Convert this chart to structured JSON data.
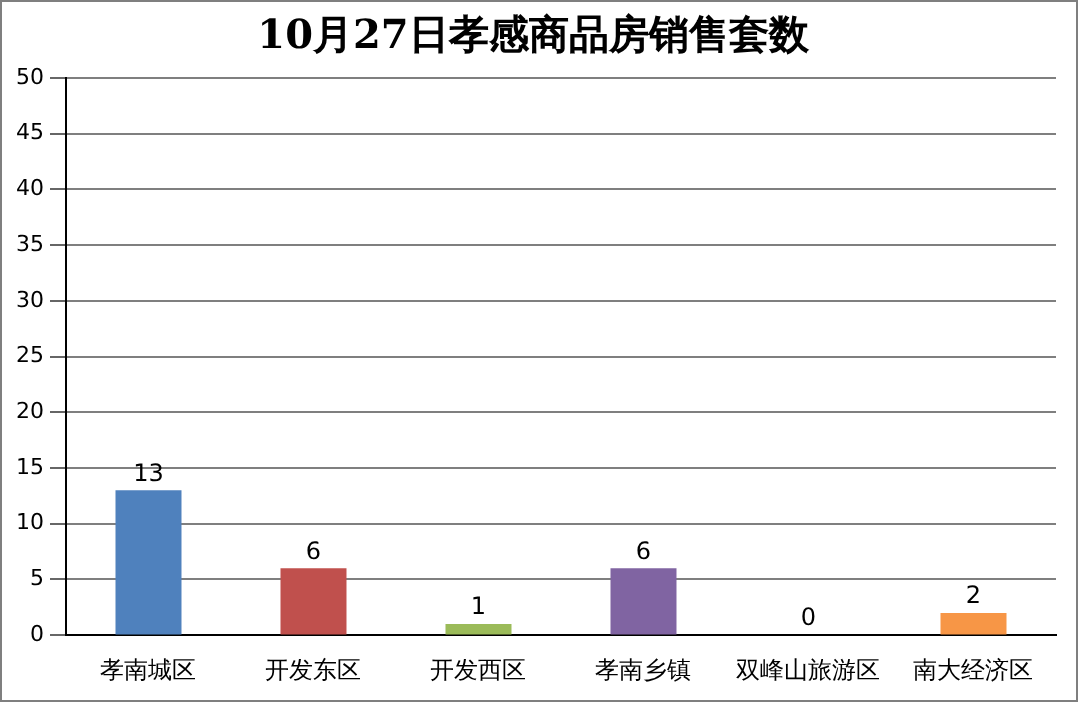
{
  "chart_data": {
    "type": "bar",
    "title": "10月27日孝感商品房销售套数",
    "categories": [
      "孝南城区",
      "开发东区",
      "开发西区",
      "孝南乡镇",
      "双峰山旅游区",
      "南大经济区"
    ],
    "values": [
      13,
      6,
      1,
      6,
      0,
      2
    ],
    "colors": [
      "#4f81bd",
      "#c0504d",
      "#9bbb59",
      "#8064a2",
      "#4bacc6",
      "#f79646"
    ],
    "ylim": [
      0,
      50
    ],
    "yticks": [
      0,
      5,
      10,
      15,
      20,
      25,
      30,
      35,
      40,
      45,
      50
    ],
    "grid": "y",
    "data_labels": true
  }
}
